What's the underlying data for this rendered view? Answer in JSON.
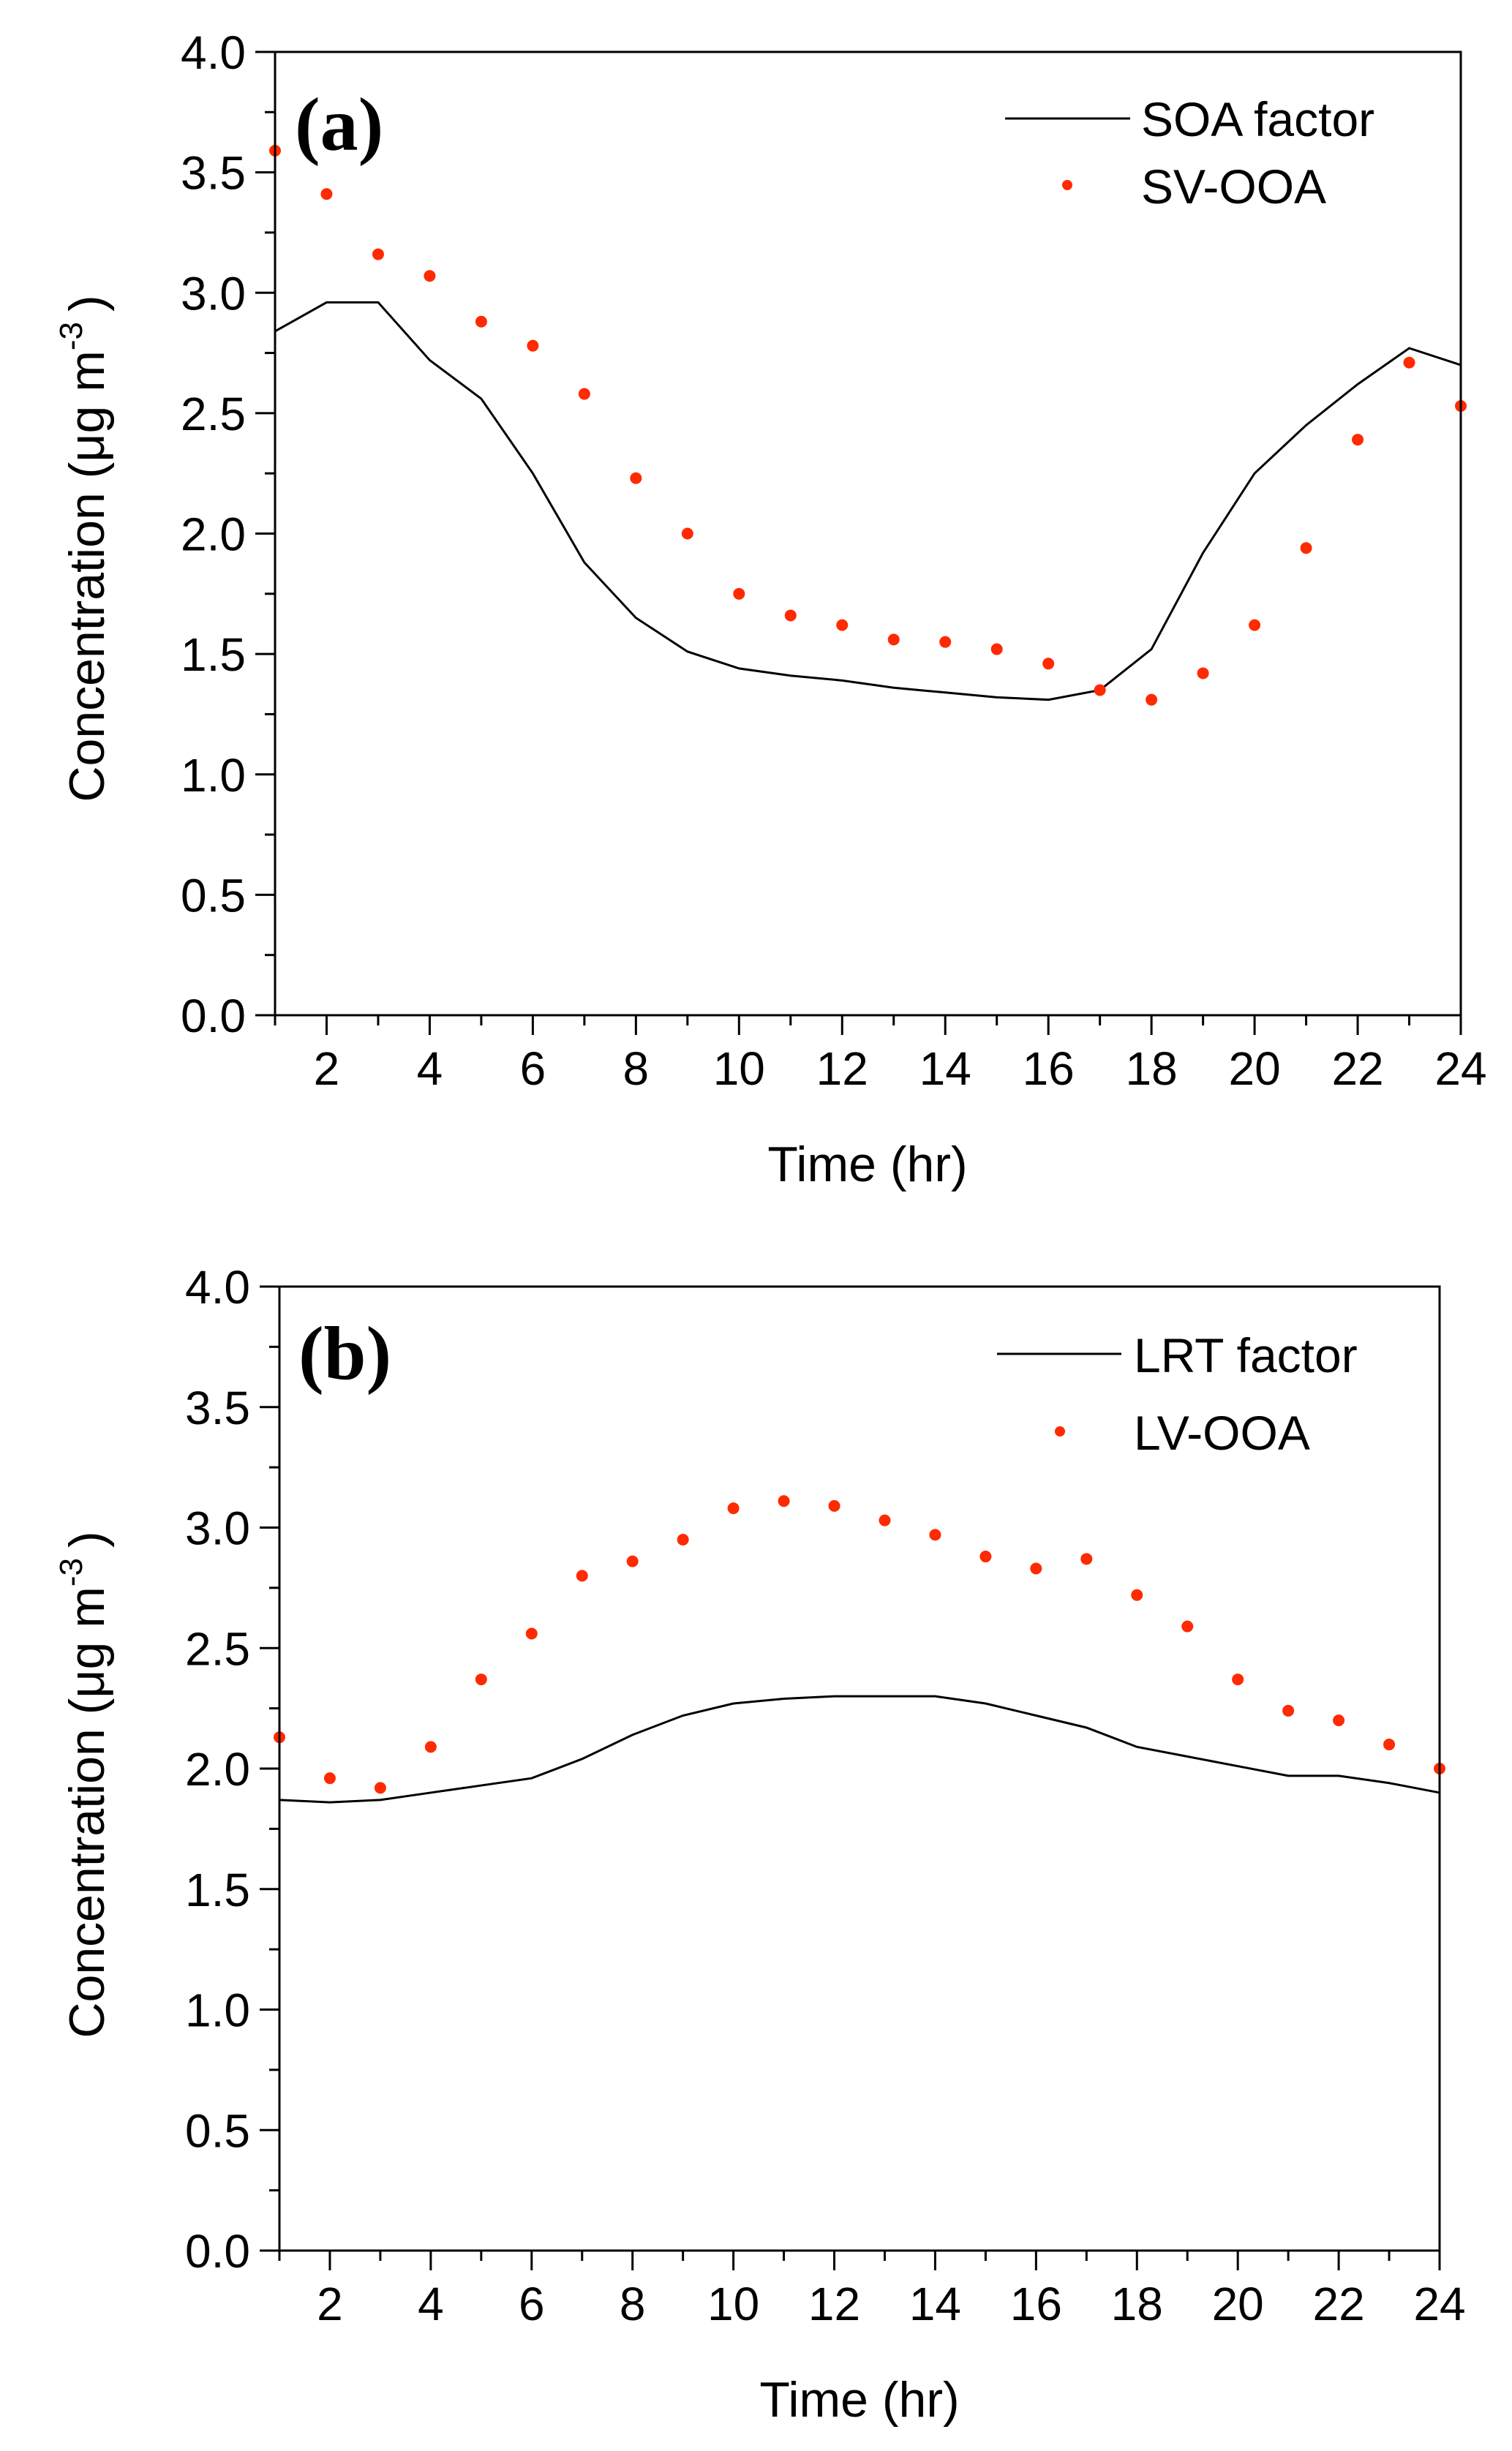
{
  "chart_data": [
    {
      "type": "line",
      "panel_label": "(a)",
      "xlabel": "Time (hr)",
      "ylabel": "Concentration (μg m",
      "ylabel_superscript": "-3",
      "ylabel_close": ")",
      "xlim": [
        1,
        24
      ],
      "ylim": [
        0,
        4.0
      ],
      "xticks": [
        2,
        4,
        6,
        8,
        10,
        12,
        14,
        16,
        18,
        20,
        22,
        24
      ],
      "yticks": [
        "0.0",
        "0.5",
        "1.0",
        "1.5",
        "2.0",
        "2.5",
        "3.0",
        "3.5",
        "4.0"
      ],
      "grid": false,
      "legend_position": "top-right",
      "x": [
        1,
        2,
        3,
        4,
        5,
        6,
        7,
        8,
        9,
        10,
        11,
        12,
        13,
        14,
        15,
        16,
        17,
        18,
        19,
        20,
        21,
        22,
        23,
        24
      ],
      "series": [
        {
          "name": "SOA factor",
          "style": "line",
          "color": "#000000",
          "values": [
            2.84,
            2.96,
            2.96,
            2.72,
            2.56,
            2.25,
            1.88,
            1.65,
            1.51,
            1.44,
            1.41,
            1.39,
            1.36,
            1.34,
            1.32,
            1.31,
            1.35,
            1.52,
            1.92,
            2.25,
            2.45,
            2.62,
            2.77,
            2.7
          ]
        },
        {
          "name": "SV-OOA",
          "style": "scatter",
          "color": "#ff2a00",
          "values": [
            3.59,
            3.41,
            3.16,
            3.07,
            2.88,
            2.78,
            2.58,
            2.23,
            2.0,
            1.75,
            1.66,
            1.62,
            1.56,
            1.55,
            1.52,
            1.46,
            1.35,
            1.31,
            1.42,
            1.62,
            1.94,
            2.39,
            2.71,
            2.53
          ]
        }
      ]
    },
    {
      "type": "line",
      "panel_label": "(b)",
      "xlabel": "Time (hr)",
      "ylabel": "Concentration (μg m",
      "ylabel_superscript": "-3",
      "ylabel_close": ")",
      "xlim": [
        1,
        24
      ],
      "ylim": [
        0,
        4.0
      ],
      "xticks": [
        2,
        4,
        6,
        8,
        10,
        12,
        14,
        16,
        18,
        20,
        22,
        24
      ],
      "yticks": [
        "0.0",
        "0.5",
        "1.0",
        "1.5",
        "2.0",
        "2.5",
        "3.0",
        "3.5",
        "4.0"
      ],
      "grid": false,
      "legend_position": "top-right",
      "x": [
        1,
        2,
        3,
        4,
        5,
        6,
        7,
        8,
        9,
        10,
        11,
        12,
        13,
        14,
        15,
        16,
        17,
        18,
        19,
        20,
        21,
        22,
        23,
        24
      ],
      "series": [
        {
          "name": "LRT factor",
          "style": "line",
          "color": "#000000",
          "values": [
            1.87,
            1.86,
            1.87,
            1.9,
            1.93,
            1.96,
            2.04,
            2.14,
            2.22,
            2.27,
            2.29,
            2.3,
            2.3,
            2.3,
            2.27,
            2.22,
            2.17,
            2.09,
            2.05,
            2.01,
            1.97,
            1.97,
            1.94,
            1.9
          ]
        },
        {
          "name": "LV-OOA",
          "style": "scatter",
          "color": "#ff2a00",
          "values": [
            2.13,
            1.96,
            1.92,
            2.09,
            2.37,
            2.56,
            2.8,
            2.86,
            2.95,
            3.08,
            3.11,
            3.09,
            3.03,
            2.97,
            2.88,
            2.83,
            2.87,
            2.72,
            2.59,
            2.37,
            2.24,
            2.2,
            2.1,
            2.0
          ]
        }
      ]
    }
  ]
}
